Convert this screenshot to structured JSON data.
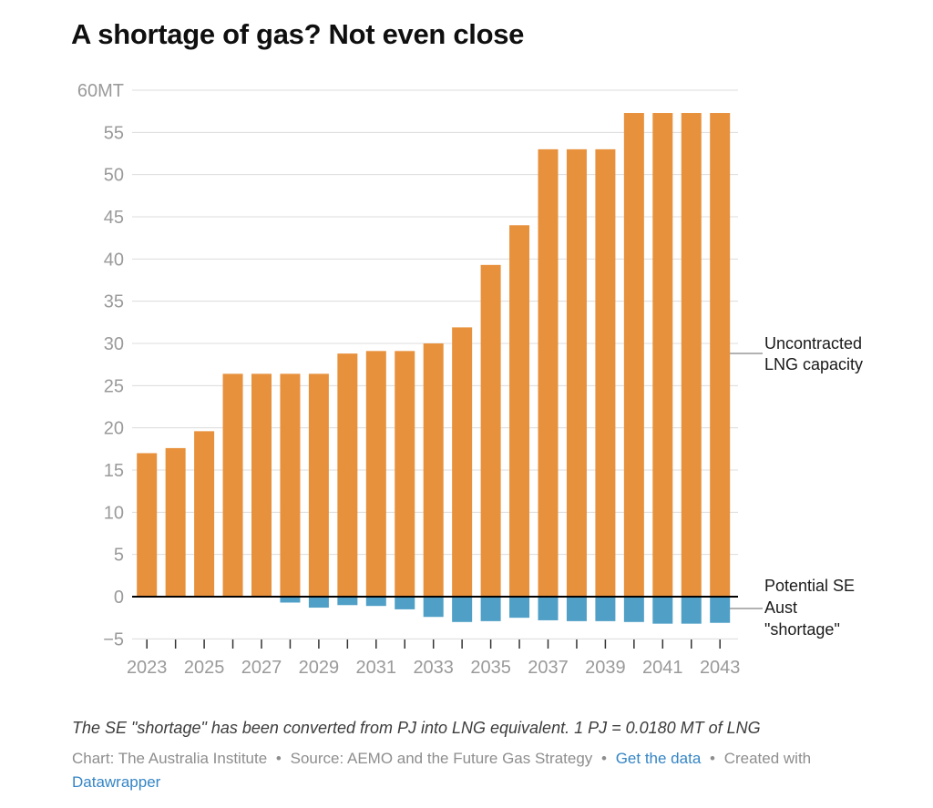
{
  "title": "A shortage of gas? Not even close",
  "annotations": {
    "uncontracted": {
      "line1": "Uncontracted",
      "line2": "LNG capacity"
    },
    "shortage": {
      "line1": "Potential SE",
      "line2": "Aust",
      "line3": "\"shortage\""
    }
  },
  "footer": {
    "note": "The SE \"shortage\" has been converted from PJ into LNG equivalent. 1 PJ = 0.0180 MT of LNG",
    "chart_credit": "Chart: The Australia Institute",
    "separator": "•",
    "source_credit": "Source: AEMO and the Future Gas Strategy",
    "get_data_link": "Get the data",
    "created_with": "Created with",
    "datawrapper_link": "Datawrapper"
  },
  "theme": {
    "bar_orange": "#e8913c",
    "bar_blue": "#4f9fc6",
    "grid": "#dcdcdc",
    "zero_line": "#000000",
    "axis_text": "#9a9a9a",
    "tick": "#333333",
    "connector": "#999999",
    "link": "#3585c5"
  },
  "chart_data": {
    "type": "bar",
    "title": "A shortage of gas? Not even close",
    "xlabel": "",
    "ylabel": "",
    "unit": "MT",
    "categories": [
      2023,
      2024,
      2025,
      2026,
      2027,
      2028,
      2029,
      2030,
      2031,
      2032,
      2033,
      2034,
      2035,
      2036,
      2037,
      2038,
      2039,
      2040,
      2041,
      2042,
      2043
    ],
    "series": [
      {
        "name": "Uncontracted LNG capacity",
        "color": "#e8913c",
        "values": [
          17.0,
          17.6,
          19.6,
          26.4,
          26.4,
          26.4,
          26.4,
          28.8,
          29.1,
          29.1,
          30.0,
          31.9,
          39.3,
          44.0,
          53.0,
          53.0,
          53.0,
          57.3,
          57.3,
          57.3,
          57.3
        ]
      },
      {
        "name": "Potential SE Aust \"shortage\"",
        "color": "#4f9fc6",
        "values": [
          0,
          0,
          0,
          0,
          0,
          -0.7,
          -1.3,
          -1.0,
          -1.1,
          -1.5,
          -2.4,
          -3.0,
          -2.9,
          -2.5,
          -2.8,
          -2.9,
          -2.9,
          -3.0,
          -3.2,
          -3.2,
          -3.1
        ]
      }
    ],
    "ylim": [
      -5,
      60
    ],
    "yticks": [
      {
        "v": 60,
        "label": "60MT"
      },
      {
        "v": 55,
        "label": "55"
      },
      {
        "v": 50,
        "label": "50"
      },
      {
        "v": 45,
        "label": "45"
      },
      {
        "v": 40,
        "label": "40"
      },
      {
        "v": 35,
        "label": "35"
      },
      {
        "v": 30,
        "label": "30"
      },
      {
        "v": 25,
        "label": "25"
      },
      {
        "v": 20,
        "label": "20"
      },
      {
        "v": 15,
        "label": "15"
      },
      {
        "v": 10,
        "label": "10"
      },
      {
        "v": 5,
        "label": "5"
      },
      {
        "v": 0,
        "label": "0"
      },
      {
        "v": -5,
        "label": "−5"
      }
    ],
    "xtick_labels": [
      "2023",
      "2025",
      "2027",
      "2029",
      "2031",
      "2033",
      "2035",
      "2037",
      "2039",
      "2041",
      "2043"
    ],
    "grid": true,
    "legend_position": "right-annotations"
  }
}
